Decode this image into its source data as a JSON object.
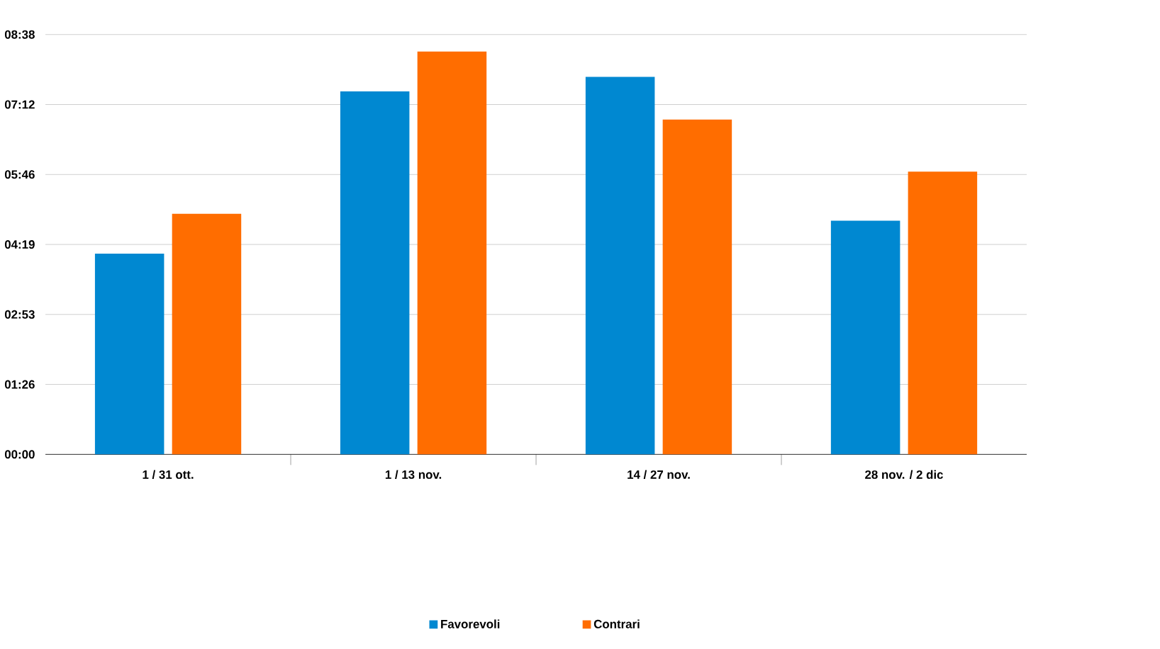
{
  "chart_data": {
    "type": "bar",
    "categories": [
      "1 / 31 ott.",
      "1 / 13 nov.",
      "14 / 27 nov.",
      "28 nov. / 2 dic"
    ],
    "series": [
      {
        "name": "Favorevoli",
        "color": "#0088d1",
        "values": [
          4.13,
          7.47,
          7.77,
          4.81
        ]
      },
      {
        "name": "Contrari",
        "color": "#ff6d00",
        "values": [
          4.95,
          8.29,
          6.89,
          5.82
        ]
      }
    ],
    "ylim": [
      0,
      8.64
    ],
    "yticks": [
      {
        "value": 0,
        "label": "00:00"
      },
      {
        "value": 1.44,
        "label": "01:26"
      },
      {
        "value": 2.88,
        "label": "02:53"
      },
      {
        "value": 4.32,
        "label": "04:19"
      },
      {
        "value": 5.76,
        "label": "05:46"
      },
      {
        "value": 7.2,
        "label": "07:12"
      },
      {
        "value": 8.64,
        "label": "08:38"
      }
    ],
    "grid": "y",
    "legend": "bottom"
  }
}
